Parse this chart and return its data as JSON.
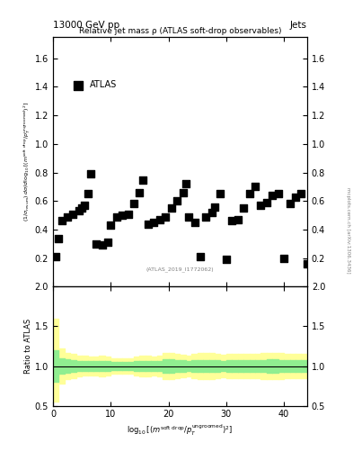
{
  "title_left": "13000 GeV pp",
  "title_right": "Jets",
  "plot_title": "Relative jet mass ρ (ATLAS soft-drop observables)",
  "legend_label": "ATLAS",
  "ref_label": "(ATLAS_2019_I1772062)",
  "ylabel_ratio": "Ratio to ATLAS",
  "side_label": "mcplots.cern.ch [arXiv:1306.3436]",
  "data_x": [
    0.5,
    1.0,
    1.5,
    2.5,
    3.5,
    4.5,
    5.0,
    5.5,
    6.0,
    6.5,
    7.5,
    8.5,
    9.5,
    10.0,
    11.0,
    12.0,
    13.0,
    14.0,
    15.0,
    15.5,
    16.5,
    17.5,
    18.5,
    19.5,
    20.5,
    21.5,
    22.5,
    23.0,
    23.5,
    24.5,
    25.5,
    26.5,
    27.5,
    28.0,
    29.0,
    30.0,
    31.0,
    32.0,
    33.0,
    34.0,
    35.0,
    36.0,
    37.0,
    38.0,
    39.0,
    40.0,
    41.0,
    42.0,
    43.0,
    44.0
  ],
  "data_y": [
    0.21,
    0.34,
    0.46,
    0.49,
    0.51,
    0.53,
    0.55,
    0.57,
    0.65,
    0.79,
    0.3,
    0.29,
    0.31,
    0.43,
    0.49,
    0.5,
    0.51,
    0.58,
    0.66,
    0.75,
    0.44,
    0.45,
    0.47,
    0.49,
    0.55,
    0.6,
    0.66,
    0.72,
    0.49,
    0.45,
    0.21,
    0.49,
    0.52,
    0.56,
    0.65,
    0.19,
    0.46,
    0.47,
    0.55,
    0.65,
    0.7,
    0.57,
    0.59,
    0.64,
    0.65,
    0.2,
    0.58,
    0.63,
    0.65,
    0.16
  ],
  "ylim_main": [
    0.0,
    1.75
  ],
  "ylim_ratio": [
    0.5,
    2.0
  ],
  "xlim": [
    0,
    44
  ],
  "yticks_main": [
    0.2,
    0.4,
    0.6,
    0.8,
    1.0,
    1.2,
    1.4,
    1.6
  ],
  "yticks_ratio": [
    0.5,
    1.0,
    1.5,
    2.0
  ],
  "xticks": [
    0,
    10,
    20,
    30,
    40
  ],
  "marker_color": "black",
  "marker_style": "s",
  "marker_size": 4,
  "green_color": "#90EE90",
  "yellow_color": "#FFFF99",
  "ratio_line_color": "black",
  "background_color": "white",
  "ratio_yellow_bands": {
    "x": [
      0,
      1,
      2,
      3,
      4,
      5,
      6,
      7,
      8,
      9,
      10,
      11,
      12,
      13,
      14,
      15,
      16,
      17,
      18,
      19,
      20,
      21,
      22,
      23,
      24,
      25,
      26,
      27,
      28,
      29,
      30,
      31,
      32,
      33,
      34,
      35,
      36,
      37,
      38,
      39,
      40,
      41,
      42,
      43
    ],
    "lo": [
      0.55,
      0.78,
      0.83,
      0.85,
      0.87,
      0.88,
      0.88,
      0.88,
      0.87,
      0.88,
      0.9,
      0.9,
      0.9,
      0.9,
      0.88,
      0.87,
      0.87,
      0.88,
      0.87,
      0.83,
      0.83,
      0.85,
      0.86,
      0.87,
      0.85,
      0.84,
      0.84,
      0.84,
      0.85,
      0.86,
      0.85,
      0.85,
      0.85,
      0.85,
      0.85,
      0.85,
      0.84,
      0.83,
      0.83,
      0.84,
      0.85,
      0.85,
      0.85,
      0.85
    ],
    "hi": [
      1.6,
      1.22,
      1.17,
      1.15,
      1.13,
      1.13,
      1.12,
      1.12,
      1.13,
      1.12,
      1.1,
      1.1,
      1.1,
      1.1,
      1.12,
      1.13,
      1.13,
      1.12,
      1.13,
      1.17,
      1.17,
      1.15,
      1.14,
      1.13,
      1.15,
      1.16,
      1.16,
      1.16,
      1.15,
      1.14,
      1.15,
      1.15,
      1.15,
      1.15,
      1.15,
      1.15,
      1.16,
      1.17,
      1.17,
      1.16,
      1.15,
      1.15,
      1.15,
      1.15
    ]
  },
  "ratio_green_bands": {
    "x": [
      0,
      1,
      2,
      3,
      4,
      5,
      6,
      7,
      8,
      9,
      10,
      11,
      12,
      13,
      14,
      15,
      16,
      17,
      18,
      19,
      20,
      21,
      22,
      23,
      24,
      25,
      26,
      27,
      28,
      29,
      30,
      31,
      32,
      33,
      34,
      35,
      36,
      37,
      38,
      39,
      40,
      41,
      42,
      43
    ],
    "lo": [
      0.8,
      0.9,
      0.92,
      0.93,
      0.94,
      0.94,
      0.94,
      0.94,
      0.94,
      0.94,
      0.95,
      0.95,
      0.95,
      0.95,
      0.94,
      0.94,
      0.94,
      0.94,
      0.94,
      0.92,
      0.92,
      0.93,
      0.93,
      0.94,
      0.93,
      0.93,
      0.93,
      0.93,
      0.93,
      0.94,
      0.93,
      0.93,
      0.93,
      0.93,
      0.93,
      0.93,
      0.93,
      0.92,
      0.92,
      0.93,
      0.93,
      0.93,
      0.93,
      0.93
    ],
    "hi": [
      1.2,
      1.1,
      1.08,
      1.07,
      1.06,
      1.06,
      1.06,
      1.06,
      1.06,
      1.06,
      1.05,
      1.05,
      1.05,
      1.05,
      1.06,
      1.06,
      1.06,
      1.06,
      1.06,
      1.08,
      1.08,
      1.07,
      1.07,
      1.06,
      1.07,
      1.07,
      1.07,
      1.07,
      1.07,
      1.06,
      1.07,
      1.07,
      1.07,
      1.07,
      1.07,
      1.07,
      1.07,
      1.08,
      1.08,
      1.07,
      1.07,
      1.07,
      1.07,
      1.07
    ]
  }
}
